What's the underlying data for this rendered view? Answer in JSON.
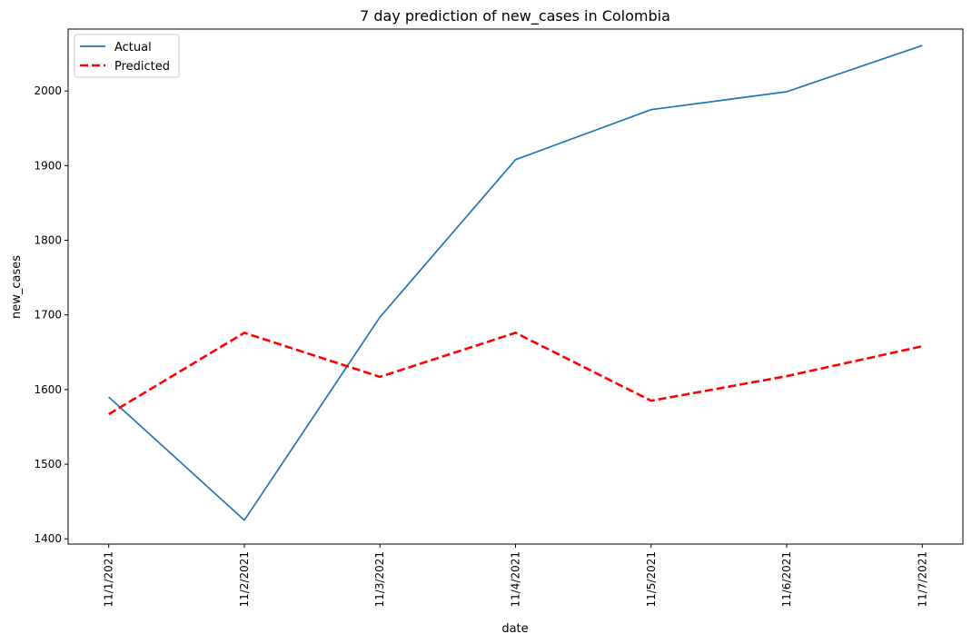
{
  "chart_data": {
    "type": "line",
    "title": "7 day prediction of new_cases in Colombia",
    "xlabel": "date",
    "ylabel": "new_cases",
    "categories": [
      "11/1/2021",
      "11/2/2021",
      "11/3/2021",
      "11/4/2021",
      "11/5/2021",
      "11/6/2021",
      "11/7/2021"
    ],
    "ylim": [
      1393,
      2083
    ],
    "yticks": [
      1400,
      1500,
      1600,
      1700,
      1800,
      1900,
      2000
    ],
    "grid": false,
    "legend": "top-left",
    "series": [
      {
        "name": "Actual",
        "color": "#1f77b4",
        "style": "solid",
        "values": [
          1590,
          1425,
          1697,
          1908,
          1975,
          1999,
          2061
        ]
      },
      {
        "name": "Predicted",
        "color": "#ff0000",
        "style": "dashed",
        "values": [
          1567,
          1676,
          1617,
          1676,
          1585,
          1618,
          1658
        ]
      }
    ]
  }
}
